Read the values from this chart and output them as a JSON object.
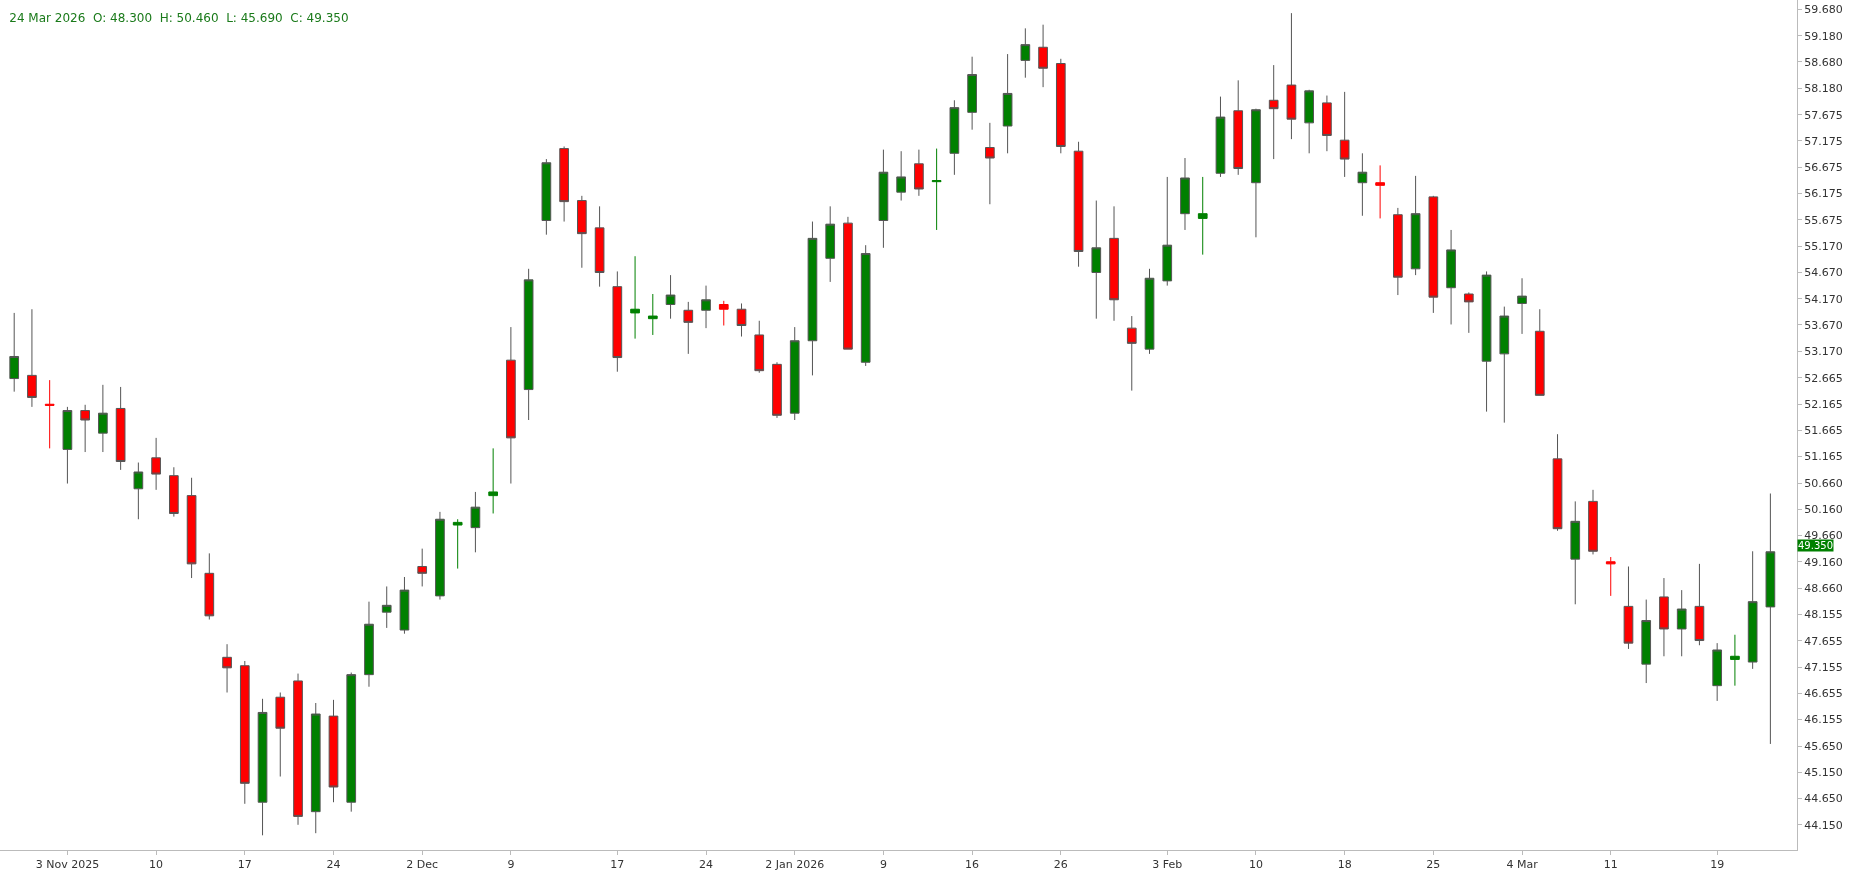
{
  "chart_data": {
    "type": "candlestick",
    "title": "24 Mar 2026  O: 48.300  H: 50.460  L: 45.690  C: 49.350",
    "categories": [
      null,
      null,
      null,
      "3 Nov 2025",
      null,
      null,
      null,
      null,
      "10",
      null,
      null,
      null,
      null,
      "17",
      null,
      null,
      null,
      null,
      "24",
      null,
      null,
      null,
      null,
      "2 Dec",
      null,
      null,
      null,
      null,
      "9",
      null,
      null,
      null,
      null,
      null,
      "17",
      null,
      null,
      null,
      null,
      "24",
      null,
      null,
      null,
      null,
      "2 Jan 2026",
      null,
      null,
      null,
      null,
      "9",
      null,
      null,
      null,
      null,
      "16",
      null,
      null,
      null,
      null,
      "26",
      null,
      null,
      null,
      null,
      null,
      "3 Feb",
      null,
      null,
      null,
      null,
      "10",
      null,
      null,
      null,
      null,
      "18",
      null,
      null,
      null,
      null,
      "25",
      null,
      null,
      null,
      null,
      "4 Mar",
      null,
      null,
      null,
      null,
      "11",
      null,
      null,
      null,
      null,
      null,
      "19",
      null,
      null,
      null
    ],
    "ohlc": [
      [
        52.65,
        53.9,
        52.4,
        53.07
      ],
      [
        52.71,
        53.97,
        52.11,
        52.29
      ],
      [
        52.16,
        52.62,
        51.32,
        52.14
      ],
      [
        51.3,
        52.11,
        50.65,
        52.04
      ],
      [
        52.04,
        52.15,
        51.25,
        51.86
      ],
      [
        51.61,
        52.53,
        51.25,
        51.99
      ],
      [
        52.08,
        52.49,
        50.91,
        51.07
      ],
      [
        50.55,
        51.05,
        49.97,
        50.87
      ],
      [
        51.14,
        51.52,
        50.53,
        50.83
      ],
      [
        50.8,
        50.96,
        50.02,
        50.08
      ],
      [
        50.42,
        50.76,
        48.85,
        49.12
      ],
      [
        48.94,
        49.32,
        48.06,
        48.13
      ],
      [
        47.34,
        47.59,
        46.67,
        47.14
      ],
      [
        47.18,
        47.27,
        44.55,
        44.94
      ],
      [
        44.58,
        46.55,
        43.95,
        46.29
      ],
      [
        46.58,
        46.67,
        45.07,
        45.99
      ],
      [
        46.89,
        47.03,
        44.15,
        44.31
      ],
      [
        44.4,
        46.47,
        43.99,
        46.26
      ],
      [
        46.22,
        46.53,
        44.58,
        44.87
      ],
      [
        44.58,
        47.05,
        44.4,
        47.01
      ],
      [
        47.01,
        48.4,
        46.78,
        47.97
      ],
      [
        48.2,
        48.69,
        47.9,
        48.33
      ],
      [
        47.86,
        48.87,
        47.79,
        48.62
      ],
      [
        49.07,
        49.41,
        48.69,
        48.94
      ],
      [
        48.51,
        50.11,
        48.44,
        49.97
      ],
      [
        49.86,
        49.97,
        49.03,
        49.91
      ],
      [
        49.81,
        50.49,
        49.34,
        50.2
      ],
      [
        50.42,
        51.32,
        50.08,
        50.49
      ],
      [
        53.0,
        53.63,
        50.65,
        51.52
      ],
      [
        52.44,
        54.74,
        51.86,
        54.53
      ],
      [
        55.66,
        56.83,
        55.39,
        56.76
      ],
      [
        57.03,
        57.07,
        55.64,
        56.02
      ],
      [
        56.04,
        56.13,
        54.76,
        55.41
      ],
      [
        55.52,
        55.93,
        54.4,
        54.67
      ],
      [
        54.4,
        54.69,
        52.78,
        53.05
      ],
      [
        53.9,
        54.98,
        53.41,
        53.97
      ],
      [
        53.79,
        54.26,
        53.48,
        53.84
      ],
      [
        54.06,
        54.62,
        53.79,
        54.24
      ],
      [
        53.95,
        54.11,
        53.12,
        53.72
      ],
      [
        53.95,
        54.42,
        53.61,
        54.15
      ],
      [
        54.06,
        54.13,
        53.66,
        53.97
      ],
      [
        53.97,
        54.08,
        53.45,
        53.66
      ],
      [
        53.48,
        53.75,
        52.76,
        52.8
      ],
      [
        52.92,
        52.96,
        51.9,
        51.95
      ],
      [
        51.99,
        53.63,
        51.86,
        53.37
      ],
      [
        53.37,
        55.64,
        52.71,
        55.32
      ],
      [
        54.94,
        55.93,
        54.49,
        55.59
      ],
      [
        55.61,
        55.73,
        53.21,
        53.21
      ],
      [
        52.96,
        55.19,
        52.89,
        55.03
      ],
      [
        55.66,
        57.01,
        55.14,
        56.58
      ],
      [
        56.2,
        56.98,
        56.04,
        56.49
      ],
      [
        56.74,
        57.01,
        56.13,
        56.26
      ],
      [
        56.4,
        57.03,
        55.48,
        56.42
      ],
      [
        56.94,
        57.95,
        56.53,
        57.81
      ],
      [
        57.72,
        58.78,
        57.39,
        58.44
      ],
      [
        57.05,
        57.52,
        55.97,
        56.85
      ],
      [
        57.46,
        58.83,
        56.94,
        58.08
      ],
      [
        58.71,
        59.32,
        58.38,
        59.01
      ],
      [
        58.96,
        59.39,
        58.2,
        58.56
      ],
      [
        58.65,
        58.74,
        56.94,
        57.07
      ],
      [
        56.98,
        57.16,
        54.78,
        55.07
      ],
      [
        54.67,
        56.04,
        53.79,
        55.14
      ],
      [
        55.32,
        55.93,
        53.75,
        54.15
      ],
      [
        53.61,
        53.84,
        52.42,
        53.32
      ],
      [
        53.21,
        54.74,
        53.12,
        54.56
      ],
      [
        54.51,
        56.49,
        54.42,
        55.19
      ],
      [
        55.79,
        56.85,
        55.48,
        56.47
      ],
      [
        55.7,
        56.49,
        55.01,
        55.79
      ],
      [
        56.56,
        58.02,
        56.49,
        57.63
      ],
      [
        57.75,
        58.33,
        56.53,
        56.65
      ],
      [
        56.38,
        57.79,
        55.34,
        57.77
      ],
      [
        57.95,
        58.62,
        56.83,
        57.79
      ],
      [
        58.24,
        59.61,
        57.21,
        57.59
      ],
      [
        57.52,
        58.15,
        56.94,
        58.13
      ],
      [
        57.9,
        58.04,
        56.98,
        57.28
      ],
      [
        57.19,
        58.11,
        56.49,
        56.83
      ],
      [
        56.38,
        56.94,
        55.75,
        56.58
      ],
      [
        56.38,
        56.71,
        55.7,
        56.33
      ],
      [
        55.77,
        55.9,
        54.24,
        54.58
      ],
      [
        54.74,
        56.51,
        54.62,
        55.79
      ],
      [
        56.11,
        56.13,
        53.9,
        54.2
      ],
      [
        54.38,
        55.48,
        53.68,
        55.1
      ],
      [
        54.26,
        54.29,
        53.52,
        54.11
      ],
      [
        52.98,
        54.69,
        52.02,
        54.62
      ],
      [
        53.12,
        54.02,
        51.81,
        53.84
      ],
      [
        54.08,
        54.56,
        53.5,
        54.22
      ],
      [
        53.55,
        53.97,
        52.33,
        52.33
      ],
      [
        51.12,
        51.59,
        49.75,
        49.79
      ],
      [
        49.21,
        50.31,
        48.35,
        49.93
      ],
      [
        50.31,
        50.53,
        49.3,
        49.36
      ],
      [
        49.16,
        49.25,
        48.51,
        49.12
      ],
      [
        48.31,
        49.07,
        47.5,
        47.61
      ],
      [
        47.21,
        48.44,
        46.85,
        48.04
      ],
      [
        48.49,
        48.85,
        47.36,
        47.88
      ],
      [
        47.88,
        48.62,
        47.36,
        48.26
      ],
      [
        48.31,
        49.12,
        47.57,
        47.66
      ],
      [
        46.8,
        47.61,
        46.51,
        47.48
      ],
      [
        47.3,
        47.77,
        46.8,
        47.36
      ],
      [
        47.25,
        49.36,
        47.12,
        48.4
      ],
      [
        48.3,
        50.46,
        45.69,
        49.35
      ]
    ],
    "colors": [
      "#008000",
      "#ff0000",
      "#ff0000",
      "#008000",
      "#ff0000",
      "#008000",
      "#ff0000",
      "#008000",
      "#ff0000",
      "#ff0000",
      "#ff0000",
      "#ff0000",
      "#ff0000",
      "#ff0000",
      "#008000",
      "#ff0000",
      "#ff0000",
      "#008000",
      "#ff0000",
      "#008000",
      "#008000",
      "#008000",
      "#008000",
      "#ff0000",
      "#008000",
      "#008000",
      "#008000",
      "#008000",
      "#ff0000",
      "#008000",
      "#008000",
      "#ff0000",
      "#ff0000",
      "#ff0000",
      "#ff0000",
      "#008000",
      "#008000",
      "#008000",
      "#ff0000",
      "#008000",
      "#ff0000",
      "#ff0000",
      "#ff0000",
      "#ff0000",
      "#008000",
      "#008000",
      "#008000",
      "#ff0000",
      "#008000",
      "#008000",
      "#008000",
      "#ff0000",
      "#008000",
      "#008000",
      "#008000",
      "#ff0000",
      "#008000",
      "#008000",
      "#ff0000",
      "#ff0000",
      "#ff0000",
      "#008000",
      "#ff0000",
      "#ff0000",
      "#008000",
      "#008000",
      "#008000",
      "#008000",
      "#008000",
      "#ff0000",
      "#008000",
      "#ff0000",
      "#ff0000",
      "#008000",
      "#ff0000",
      "#ff0000",
      "#008000",
      "#ff0000",
      "#ff0000",
      "#008000",
      "#ff0000",
      "#008000",
      "#ff0000",
      "#008000",
      "#008000",
      "#008000",
      "#ff0000",
      "#ff0000",
      "#008000",
      "#ff0000",
      "#ff0000",
      "#ff0000",
      "#008000",
      "#ff0000",
      "#008000",
      "#ff0000",
      "#008000",
      "#008000",
      "#008000",
      "#008000"
    ],
    "ylim": [
      43.67,
      59.86
    ],
    "yticks": [
      {
        "value": 59.68,
        "label": "59.680"
      },
      {
        "value": 59.18,
        "label": "59.180"
      },
      {
        "value": 58.68,
        "label": "58.680"
      },
      {
        "value": 58.18,
        "label": "58.180"
      },
      {
        "value": 57.675,
        "label": "57.675"
      },
      {
        "value": 57.175,
        "label": "57.175"
      },
      {
        "value": 56.675,
        "label": "56.675"
      },
      {
        "value": 56.175,
        "label": "56.175"
      },
      {
        "value": 55.675,
        "label": "55.675"
      },
      {
        "value": 55.17,
        "label": "55.170"
      },
      {
        "value": 54.67,
        "label": "54.670"
      },
      {
        "value": 54.17,
        "label": "54.170"
      },
      {
        "value": 53.67,
        "label": "53.670"
      },
      {
        "value": 53.17,
        "label": "53.170"
      },
      {
        "value": 52.665,
        "label": "52.665"
      },
      {
        "value": 52.165,
        "label": "52.165"
      },
      {
        "value": 51.665,
        "label": "51.665"
      },
      {
        "value": 51.165,
        "label": "51.165"
      },
      {
        "value": 50.66,
        "label": "50.660"
      },
      {
        "value": 50.16,
        "label": "50.160"
      },
      {
        "value": 49.66,
        "label": "49.660"
      },
      {
        "value": 49.16,
        "label": "49.160"
      },
      {
        "value": 48.66,
        "label": "48.660"
      },
      {
        "value": 48.155,
        "label": "48.155"
      },
      {
        "value": 47.655,
        "label": "47.655"
      },
      {
        "value": 47.155,
        "label": "47.155"
      },
      {
        "value": 46.655,
        "label": "46.655"
      },
      {
        "value": 46.155,
        "label": "46.155"
      },
      {
        "value": 45.65,
        "label": "45.650"
      },
      {
        "value": 45.15,
        "label": "45.150"
      },
      {
        "value": 44.65,
        "label": "44.650"
      },
      {
        "value": 44.15,
        "label": "44.150"
      }
    ],
    "annotations": [
      "49.350"
    ]
  }
}
